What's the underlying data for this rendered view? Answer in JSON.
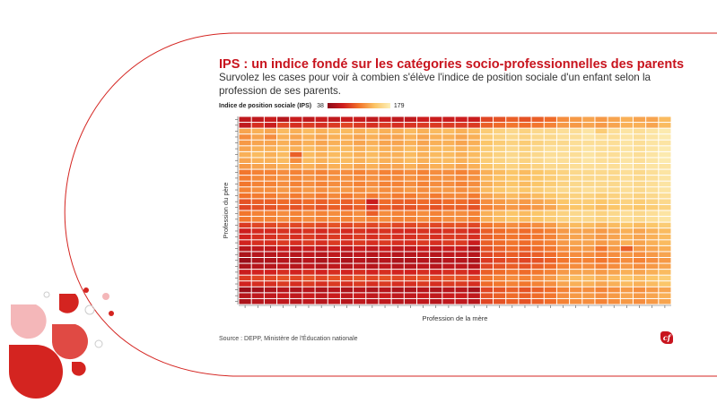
{
  "title": "IPS : un indice fondé sur les catégories socio-professionnelles des parents",
  "subtitle": "Survolez les cases pour voir à combien s'élève l'indice de position sociale d'un enfant selon la profession de ses parents.",
  "source": "Source : DEPP, Ministère de l'Éducation nationale",
  "legend": {
    "label": "Indice de position sociale (IPS)",
    "min": "38",
    "max": "179"
  },
  "colors": {
    "title": "#c8141e",
    "scale": [
      "#8c0a18",
      "#cf1e1e",
      "#f2732a",
      "#fbc466",
      "#fcefb8"
    ],
    "decor_red": "#d42420",
    "decor_pink": "#f4b7b9"
  },
  "logo_icon": "cf-logo-icon",
  "chart_data": {
    "type": "heatmap",
    "xlabel": "Profession de la mère",
    "ylabel": "Profession du père",
    "value_range": [
      38,
      179
    ],
    "grid": false,
    "legend_position": "top-left",
    "n_cols": 34,
    "n_rows": 32,
    "values": [
      [
        65,
        65,
        70,
        60,
        70,
        65,
        70,
        65,
        70,
        70,
        65,
        70,
        65,
        65,
        72,
        70,
        70,
        72,
        70,
        90,
        95,
        100,
        95,
        100,
        105,
        120,
        125,
        130,
        125,
        130,
        135,
        130,
        130,
        140
      ],
      [
        65,
        80,
        70,
        90,
        80,
        85,
        80,
        85,
        90,
        85,
        80,
        85,
        80,
        82,
        85,
        85,
        85,
        85,
        85,
        100,
        105,
        110,
        105,
        110,
        115,
        125,
        125,
        130,
        125,
        130,
        135,
        135,
        130,
        140
      ],
      [
        130,
        135,
        130,
        140,
        135,
        140,
        135,
        140,
        140,
        135,
        140,
        135,
        135,
        140,
        135,
        140,
        140,
        135,
        140,
        150,
        155,
        160,
        155,
        160,
        160,
        165,
        165,
        170,
        150,
        165,
        170,
        165,
        170,
        175
      ],
      [
        120,
        130,
        120,
        135,
        130,
        135,
        130,
        135,
        135,
        130,
        135,
        130,
        130,
        135,
        130,
        135,
        135,
        130,
        135,
        150,
        155,
        160,
        155,
        160,
        160,
        165,
        165,
        170,
        165,
        165,
        170,
        165,
        170,
        175
      ],
      [
        125,
        130,
        130,
        135,
        130,
        135,
        130,
        135,
        135,
        130,
        135,
        130,
        130,
        135,
        130,
        135,
        135,
        130,
        135,
        145,
        150,
        155,
        150,
        155,
        160,
        160,
        165,
        165,
        165,
        165,
        170,
        165,
        170,
        170
      ],
      [
        130,
        135,
        135,
        140,
        135,
        140,
        135,
        140,
        140,
        135,
        140,
        135,
        135,
        140,
        135,
        140,
        140,
        135,
        140,
        150,
        155,
        160,
        155,
        160,
        165,
        165,
        165,
        170,
        165,
        165,
        170,
        165,
        170,
        175
      ],
      [
        135,
        140,
        135,
        140,
        100,
        140,
        135,
        140,
        140,
        135,
        140,
        135,
        135,
        140,
        135,
        140,
        140,
        135,
        140,
        150,
        155,
        160,
        155,
        160,
        165,
        165,
        165,
        170,
        165,
        165,
        170,
        165,
        170,
        175
      ],
      [
        130,
        135,
        135,
        140,
        120,
        140,
        135,
        140,
        140,
        135,
        140,
        135,
        135,
        140,
        135,
        140,
        140,
        135,
        140,
        150,
        155,
        160,
        155,
        160,
        165,
        165,
        165,
        170,
        165,
        165,
        170,
        165,
        170,
        175
      ],
      [
        125,
        130,
        130,
        135,
        130,
        135,
        130,
        135,
        135,
        130,
        135,
        130,
        130,
        135,
        130,
        135,
        135,
        130,
        135,
        145,
        150,
        155,
        150,
        155,
        160,
        160,
        165,
        165,
        165,
        165,
        170,
        165,
        170,
        170
      ],
      [
        110,
        115,
        115,
        120,
        115,
        120,
        115,
        120,
        120,
        115,
        120,
        115,
        115,
        120,
        115,
        120,
        120,
        115,
        120,
        135,
        140,
        145,
        140,
        145,
        150,
        155,
        160,
        160,
        160,
        160,
        165,
        160,
        165,
        170
      ],
      [
        112,
        118,
        118,
        122,
        118,
        122,
        118,
        122,
        122,
        118,
        122,
        118,
        118,
        122,
        118,
        122,
        122,
        118,
        122,
        138,
        142,
        146,
        142,
        146,
        150,
        155,
        160,
        160,
        160,
        160,
        165,
        160,
        165,
        170
      ],
      [
        110,
        115,
        115,
        120,
        115,
        120,
        115,
        120,
        120,
        115,
        120,
        115,
        115,
        120,
        115,
        120,
        120,
        115,
        120,
        135,
        140,
        145,
        140,
        145,
        150,
        155,
        160,
        160,
        160,
        160,
        165,
        160,
        165,
        170
      ],
      [
        115,
        120,
        120,
        125,
        120,
        125,
        120,
        125,
        125,
        120,
        125,
        120,
        120,
        125,
        120,
        125,
        125,
        120,
        125,
        140,
        145,
        150,
        145,
        150,
        155,
        160,
        160,
        165,
        160,
        160,
        165,
        160,
        165,
        170
      ],
      [
        108,
        112,
        112,
        118,
        112,
        118,
        112,
        118,
        112,
        118,
        112,
        118,
        112,
        112,
        118,
        112,
        118,
        118,
        112,
        130,
        135,
        140,
        135,
        140,
        145,
        150,
        155,
        155,
        150,
        155,
        160,
        155,
        160,
        165
      ],
      [
        95,
        100,
        100,
        105,
        100,
        105,
        100,
        105,
        100,
        105,
        70,
        105,
        100,
        100,
        105,
        100,
        105,
        105,
        100,
        120,
        125,
        130,
        125,
        130,
        135,
        145,
        150,
        150,
        145,
        150,
        155,
        150,
        155,
        160
      ],
      [
        90,
        95,
        95,
        100,
        95,
        100,
        95,
        100,
        95,
        100,
        80,
        100,
        95,
        95,
        100,
        95,
        100,
        100,
        95,
        115,
        120,
        125,
        120,
        125,
        130,
        140,
        145,
        145,
        140,
        145,
        150,
        145,
        150,
        155
      ],
      [
        110,
        115,
        115,
        120,
        115,
        120,
        115,
        120,
        115,
        120,
        100,
        120,
        115,
        115,
        120,
        115,
        120,
        120,
        115,
        135,
        140,
        145,
        140,
        145,
        150,
        155,
        160,
        160,
        155,
        160,
        165,
        160,
        165,
        170
      ],
      [
        110,
        115,
        115,
        120,
        115,
        120,
        115,
        120,
        115,
        120,
        115,
        120,
        115,
        115,
        120,
        115,
        120,
        120,
        115,
        135,
        140,
        145,
        140,
        145,
        150,
        155,
        160,
        160,
        155,
        160,
        165,
        160,
        165,
        170
      ],
      [
        85,
        90,
        90,
        95,
        90,
        95,
        90,
        95,
        90,
        95,
        90,
        95,
        90,
        90,
        95,
        90,
        95,
        95,
        90,
        110,
        115,
        120,
        115,
        120,
        125,
        135,
        140,
        140,
        135,
        140,
        145,
        140,
        145,
        150
      ],
      [
        72,
        78,
        78,
        82,
        78,
        82,
        78,
        82,
        78,
        82,
        78,
        82,
        78,
        78,
        82,
        78,
        82,
        82,
        78,
        100,
        105,
        110,
        105,
        110,
        115,
        125,
        130,
        130,
        125,
        130,
        135,
        130,
        135,
        140
      ],
      [
        75,
        80,
        80,
        85,
        80,
        85,
        80,
        85,
        80,
        85,
        80,
        85,
        80,
        80,
        85,
        80,
        85,
        85,
        80,
        100,
        105,
        110,
        105,
        110,
        115,
        125,
        130,
        130,
        125,
        130,
        135,
        130,
        135,
        140
      ],
      [
        75,
        80,
        80,
        85,
        80,
        85,
        80,
        85,
        80,
        85,
        80,
        85,
        80,
        80,
        85,
        80,
        85,
        85,
        70,
        100,
        105,
        110,
        105,
        110,
        115,
        125,
        130,
        130,
        125,
        130,
        135,
        130,
        135,
        140
      ],
      [
        60,
        65,
        65,
        70,
        65,
        70,
        65,
        70,
        65,
        70,
        65,
        70,
        65,
        65,
        70,
        65,
        70,
        70,
        55,
        95,
        100,
        105,
        100,
        105,
        110,
        120,
        125,
        125,
        110,
        125,
        100,
        125,
        130,
        135
      ],
      [
        55,
        60,
        60,
        65,
        60,
        65,
        60,
        65,
        60,
        65,
        60,
        65,
        60,
        60,
        65,
        60,
        65,
        65,
        60,
        90,
        95,
        100,
        95,
        100,
        105,
        115,
        120,
        120,
        115,
        120,
        125,
        120,
        125,
        130
      ],
      [
        45,
        55,
        55,
        60,
        55,
        60,
        55,
        60,
        55,
        60,
        55,
        60,
        55,
        55,
        60,
        55,
        60,
        60,
        55,
        85,
        90,
        95,
        90,
        95,
        100,
        110,
        115,
        115,
        110,
        115,
        120,
        115,
        120,
        125
      ],
      [
        55,
        60,
        60,
        65,
        60,
        65,
        60,
        65,
        60,
        65,
        60,
        65,
        60,
        60,
        65,
        60,
        65,
        65,
        60,
        90,
        95,
        100,
        95,
        100,
        105,
        115,
        120,
        120,
        115,
        120,
        125,
        120,
        125,
        130
      ],
      [
        70,
        75,
        75,
        80,
        75,
        80,
        75,
        80,
        75,
        80,
        75,
        80,
        75,
        75,
        80,
        75,
        80,
        80,
        75,
        100,
        105,
        110,
        105,
        110,
        115,
        125,
        130,
        130,
        125,
        130,
        135,
        130,
        135,
        140
      ],
      [
        85,
        90,
        90,
        95,
        90,
        95,
        90,
        95,
        90,
        95,
        90,
        95,
        90,
        90,
        95,
        90,
        95,
        95,
        90,
        110,
        115,
        120,
        115,
        120,
        125,
        135,
        140,
        140,
        135,
        140,
        145,
        140,
        145,
        150
      ],
      [
        75,
        80,
        80,
        85,
        80,
        85,
        80,
        85,
        80,
        85,
        80,
        85,
        80,
        80,
        85,
        80,
        85,
        85,
        80,
        105,
        110,
        115,
        110,
        115,
        120,
        130,
        135,
        135,
        130,
        135,
        140,
        135,
        140,
        145
      ],
      [
        45,
        50,
        55,
        60,
        55,
        60,
        55,
        60,
        55,
        60,
        55,
        60,
        55,
        55,
        60,
        55,
        60,
        60,
        50,
        90,
        95,
        100,
        95,
        100,
        105,
        115,
        120,
        120,
        115,
        120,
        125,
        120,
        125,
        130
      ],
      [
        60,
        65,
        65,
        70,
        65,
        70,
        65,
        70,
        65,
        70,
        65,
        70,
        65,
        65,
        70,
        65,
        70,
        70,
        65,
        95,
        100,
        105,
        100,
        105,
        110,
        120,
        125,
        125,
        120,
        125,
        130,
        125,
        130,
        135
      ],
      [
        55,
        60,
        60,
        65,
        60,
        65,
        60,
        65,
        60,
        65,
        60,
        65,
        60,
        60,
        65,
        60,
        65,
        65,
        60,
        90,
        95,
        100,
        95,
        100,
        105,
        115,
        120,
        120,
        115,
        120,
        125,
        120,
        125,
        130
      ]
    ]
  }
}
